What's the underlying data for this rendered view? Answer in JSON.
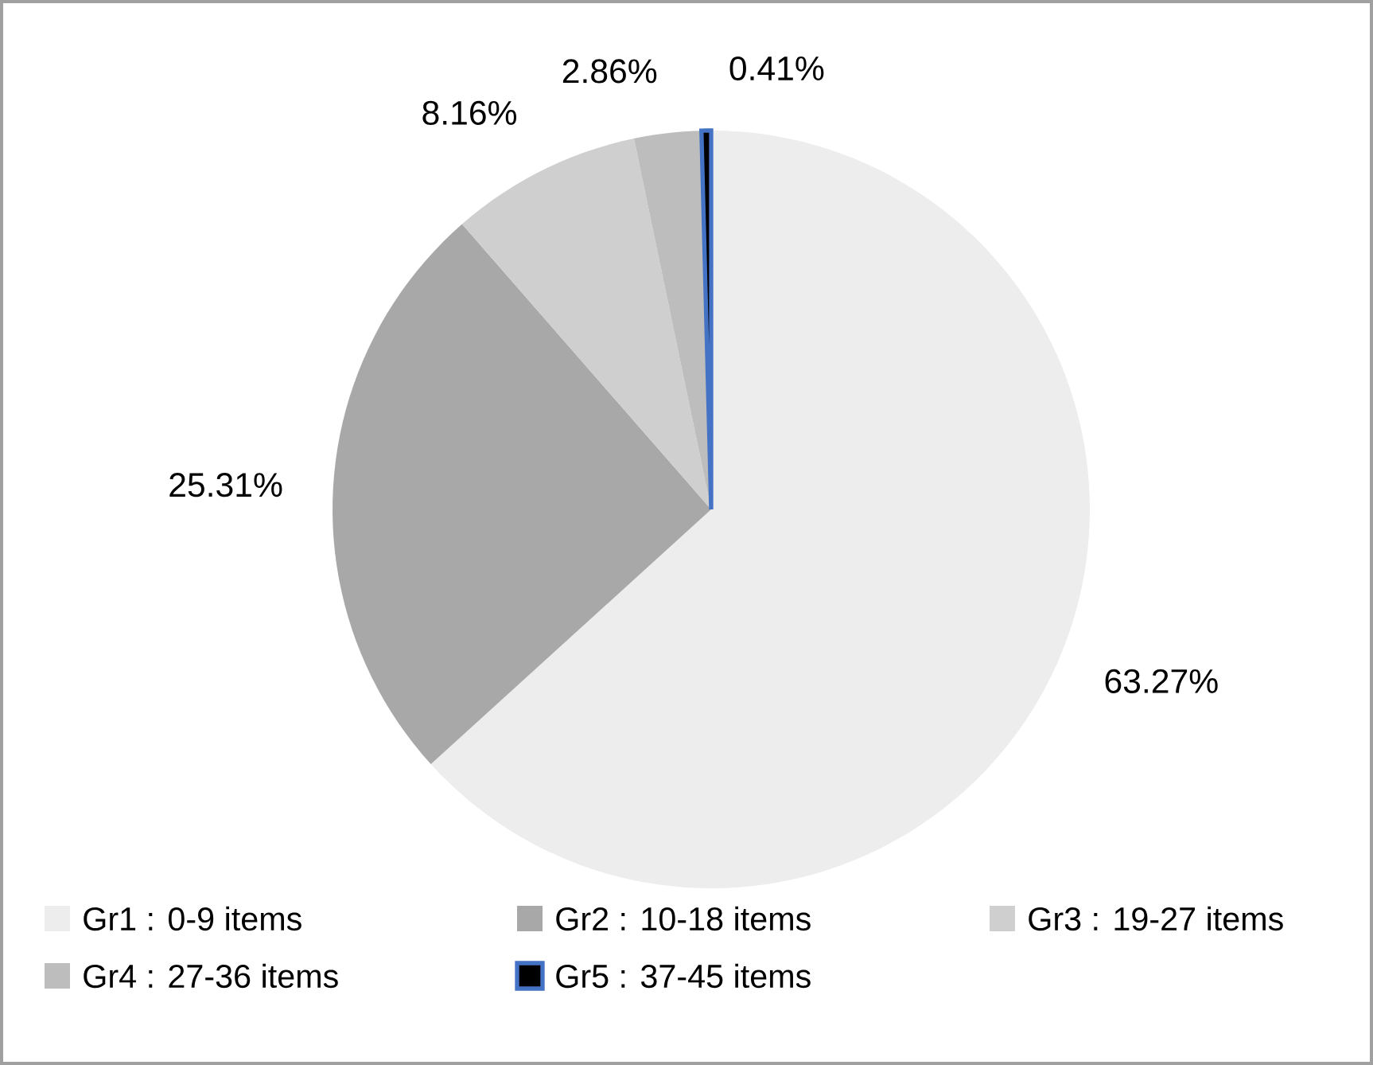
{
  "chart_data": {
    "type": "pie",
    "categories": [
      "Gr1 : 0-9 items",
      "Gr2 : 10-18 items",
      "Gr3 : 19-27 items",
      "Gr4 : 27-36 items",
      "Gr5 : 37-45 items"
    ],
    "values": [
      63.27,
      25.31,
      8.16,
      2.86,
      0.41
    ],
    "value_labels": [
      "63.27%",
      "25.31%",
      "8.16%",
      "2.86%",
      "0.41%"
    ],
    "colors": [
      "#ededed",
      "#a8a8a8",
      "#cfcfcf",
      "#bdbdbd",
      "#000000"
    ],
    "legend": "bottom"
  }
}
